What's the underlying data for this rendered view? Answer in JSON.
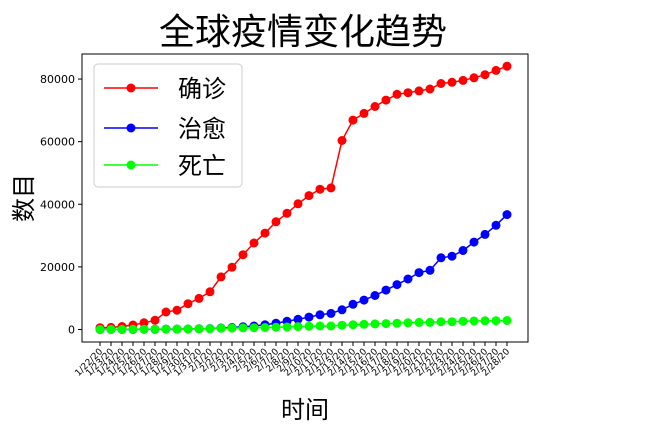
{
  "chart_data": {
    "type": "line",
    "title": "全球疫情变化趋势",
    "xlabel": "时间",
    "ylabel": "数目",
    "ylim": [
      -4000,
      88000
    ],
    "yticks": [
      0,
      20000,
      40000,
      60000,
      80000
    ],
    "grid": false,
    "legend_position": "top-left",
    "categories": [
      "1/22/20",
      "1/23/20",
      "1/24/20",
      "1/25/20",
      "1/26/20",
      "1/27/20",
      "1/28/20",
      "1/29/20",
      "1/30/20",
      "1/31/20",
      "2/1/20",
      "2/2/20",
      "2/3/20",
      "2/4/20",
      "2/5/20",
      "2/6/20",
      "2/7/20",
      "2/8/20",
      "2/9/20",
      "2/10/20",
      "2/11/20",
      "2/12/20",
      "2/13/20",
      "2/14/20",
      "2/15/20",
      "2/16/20",
      "2/17/20",
      "2/18/20",
      "2/19/20",
      "2/20/20",
      "2/21/20",
      "2/22/20",
      "2/23/20",
      "2/24/20",
      "2/25/20",
      "2/26/20",
      "2/27/20",
      "2/28/20"
    ],
    "series": [
      {
        "name": "确诊",
        "color": "#ff0000",
        "values": [
          555,
          654,
          941,
          1434,
          2118,
          2927,
          5578,
          6166,
          8234,
          9927,
          12038,
          16787,
          19881,
          23892,
          27635,
          30794,
          34391,
          37120,
          40150,
          42762,
          44802,
          45221,
          60368,
          66885,
          69030,
          71224,
          73258,
          75136,
          75639,
          76197,
          76819,
          78572,
          78958,
          79561,
          80406,
          81388,
          82746,
          84112
        ]
      },
      {
        "name": "治愈",
        "color": "#0000ff",
        "values": [
          28,
          30,
          36,
          39,
          52,
          61,
          107,
          126,
          143,
          222,
          284,
          472,
          623,
          852,
          1124,
          1487,
          2011,
          2616,
          3244,
          3946,
          4683,
          5150,
          6295,
          8058,
          9395,
          10865,
          12583,
          14352,
          16121,
          18177,
          18890,
          22886,
          23394,
          25227,
          27905,
          30384,
          33277,
          36711
        ]
      },
      {
        "name": "死亡",
        "color": "#00ff00",
        "values": [
          17,
          18,
          26,
          42,
          56,
          82,
          131,
          133,
          171,
          213,
          259,
          362,
          426,
          492,
          564,
          634,
          719,
          806,
          906,
          1013,
          1113,
          1118,
          1371,
          1523,
          1666,
          1770,
          1868,
          2007,
          2122,
          2247,
          2251,
          2458,
          2469,
          2629,
          2708,
          2770,
          2814,
          2872
        ]
      }
    ]
  }
}
